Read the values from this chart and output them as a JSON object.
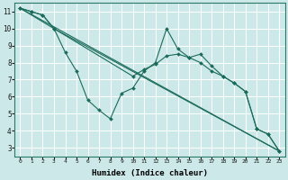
{
  "xlabel": "Humidex (Indice chaleur)",
  "bg_color": "#cce8e8",
  "line_color": "#1a6b5a",
  "grid_color": "#ffffff",
  "xlim": [
    -0.5,
    23.5
  ],
  "ylim": [
    2.5,
    11.5
  ],
  "xticks": [
    0,
    1,
    2,
    3,
    4,
    5,
    6,
    7,
    8,
    9,
    10,
    11,
    12,
    13,
    14,
    15,
    16,
    17,
    18,
    19,
    20,
    21,
    22,
    23
  ],
  "yticks": [
    3,
    4,
    5,
    6,
    7,
    8,
    9,
    10,
    11
  ],
  "series": [
    {
      "x": [
        0,
        1,
        2,
        3,
        4,
        5,
        6,
        7,
        8,
        9,
        10,
        11,
        12,
        13,
        14,
        15,
        16,
        17,
        18,
        19,
        20,
        21,
        22,
        23
      ],
      "y": [
        11.2,
        11.0,
        10.8,
        10.0,
        8.6,
        7.5,
        5.8,
        5.2,
        4.7,
        6.2,
        6.5,
        7.5,
        8.0,
        10.0,
        8.8,
        8.3,
        8.5,
        7.8,
        7.2,
        6.8,
        6.3,
        4.1,
        3.8,
        2.8
      ],
      "markers": true
    },
    {
      "x": [
        0,
        1,
        2,
        3,
        10,
        11,
        12,
        13,
        14,
        15,
        16,
        17,
        18,
        19,
        20,
        21,
        22,
        23
      ],
      "y": [
        11.2,
        11.0,
        10.8,
        10.0,
        7.2,
        7.6,
        7.9,
        8.4,
        8.5,
        8.3,
        8.0,
        7.5,
        7.2,
        6.8,
        6.3,
        4.1,
        3.8,
        2.8
      ],
      "markers": true
    },
    {
      "x": [
        0,
        3,
        23
      ],
      "y": [
        11.2,
        10.0,
        2.8
      ],
      "markers": false
    },
    {
      "x": [
        0,
        23
      ],
      "y": [
        11.2,
        2.8
      ],
      "markers": false
    }
  ]
}
